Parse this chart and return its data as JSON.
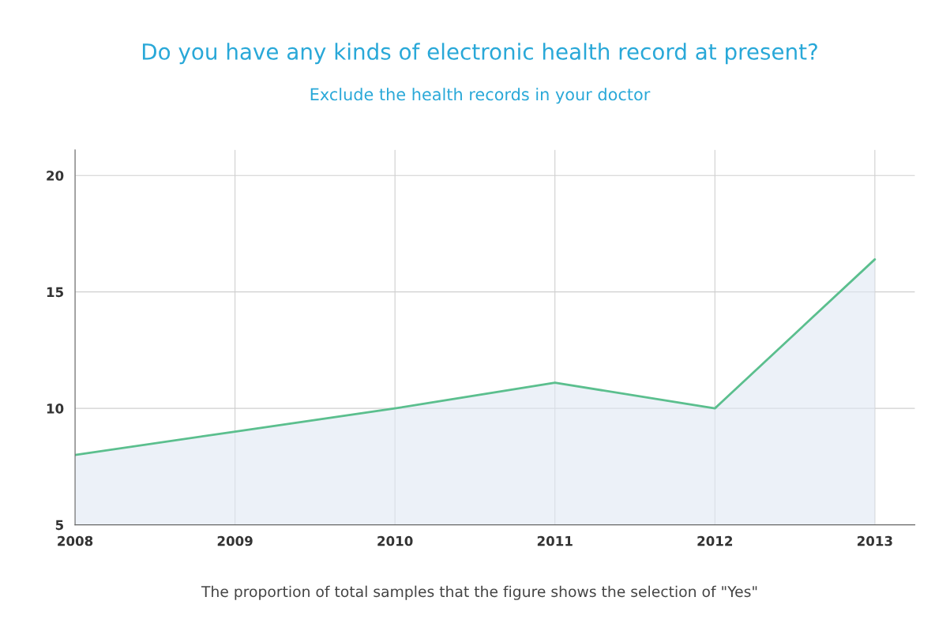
{
  "chart_data": {
    "type": "area",
    "title": "Do you have any kinds of electronic health record at present?",
    "subtitle": "Exclude the health records in your doctor",
    "x": [
      2008,
      2009,
      2010,
      2011,
      2012,
      2013
    ],
    "series": [
      {
        "color": "#5bbf8e",
        "values": [
          8,
          9,
          10,
          11.1,
          10,
          16.4
        ]
      }
    ],
    "xlim": [
      2008,
      2013.25
    ],
    "xticks": [
      2008,
      2009,
      2010,
      2011,
      2012,
      2013
    ],
    "ylim": [
      5,
      21.1
    ],
    "yticks": [
      5,
      10,
      15,
      20
    ],
    "grid": true,
    "legend": false,
    "marker": "none",
    "line_style": "solid",
    "annotations": [
      "The proportion of total samples that the figure shows the selection of \"Yes\""
    ]
  }
}
